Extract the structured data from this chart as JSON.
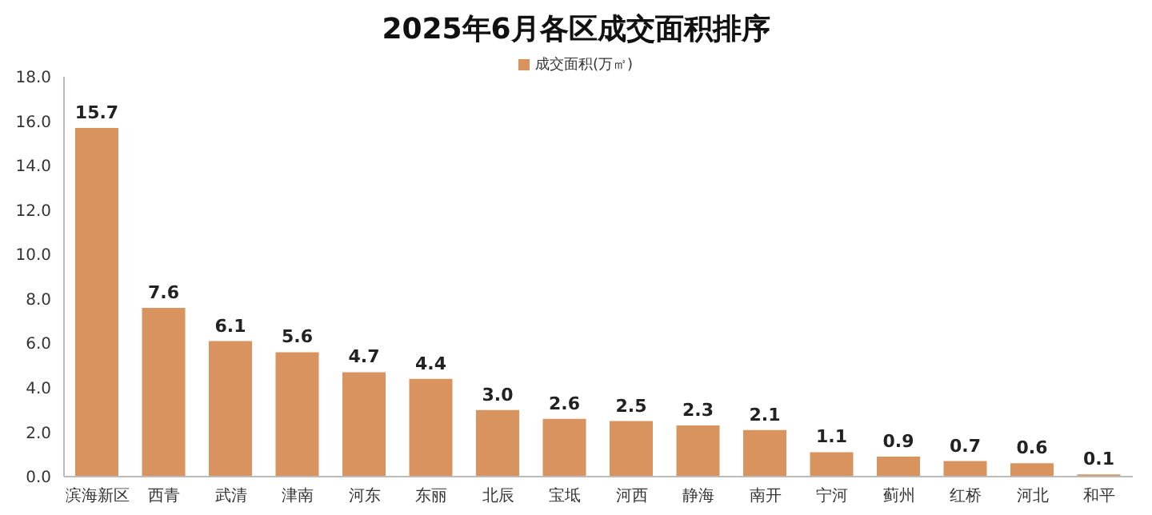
{
  "chart_data": {
    "type": "bar",
    "title": "2025年6月各区成交面积排序",
    "categories": [
      "滨海新区",
      "西青",
      "武清",
      "津南",
      "河东",
      "东丽",
      "北辰",
      "宝坻",
      "河西",
      "静海",
      "南开",
      "宁河",
      "蓟州",
      "红桥",
      "河北",
      "和平"
    ],
    "series": [
      {
        "name": "成交面积(万㎡)",
        "color": "#d9935f",
        "values": [
          15.7,
          7.6,
          6.1,
          5.6,
          4.7,
          4.4,
          3.0,
          2.6,
          2.5,
          2.3,
          2.1,
          1.1,
          0.9,
          0.7,
          0.6,
          0.1
        ],
        "value_labels": [
          "15.7",
          "7.6",
          "6.1",
          "5.6",
          "4.7",
          "4.4",
          "3.0",
          "2.6",
          "2.5",
          "2.3",
          "2.1",
          "1.1",
          "0.9",
          "0.7",
          "0.6",
          "0.1"
        ]
      }
    ],
    "ylim": [
      0,
      18
    ],
    "yticks": [
      {
        "value": 0,
        "label": "0.0"
      },
      {
        "value": 2,
        "label": "2.0"
      },
      {
        "value": 4,
        "label": "4.0"
      },
      {
        "value": 6,
        "label": "6.0"
      },
      {
        "value": 8,
        "label": "8.0"
      },
      {
        "value": 10,
        "label": "10.0"
      },
      {
        "value": 12,
        "label": "12.0"
      },
      {
        "value": 14,
        "label": "14.0"
      },
      {
        "value": 16,
        "label": "16.0"
      },
      {
        "value": 18,
        "label": "18.0"
      }
    ],
    "legend": "top",
    "grid": false
  }
}
